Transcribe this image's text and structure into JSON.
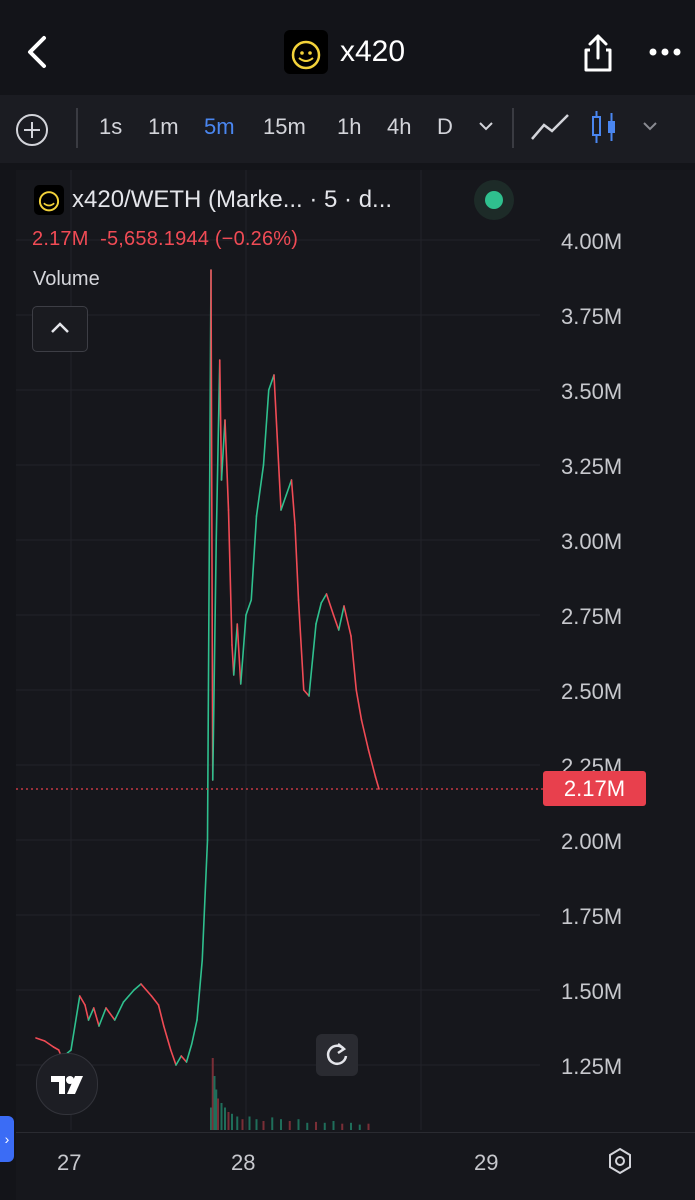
{
  "header": {
    "title": "x420",
    "logo_text": "x420",
    "back_icon": "chevron-left-icon",
    "share_icon": "share-icon",
    "more_icon": "more-dots-icon"
  },
  "toolbar": {
    "timeframes": [
      "1s",
      "1m",
      "5m",
      "15m",
      "1h",
      "4h",
      "D"
    ],
    "active_timeframe": "5m",
    "active_color": "#4a86f0"
  },
  "legend": {
    "pair": "x420/WETH (Marke... · 5 · d...",
    "last_price": "2.17M",
    "change": "-5,658.1944 (−0.26%)",
    "volume_label": "Volume",
    "down_color": "#f04b55",
    "up_color": "#2fc08e"
  },
  "chart_data": {
    "type": "line",
    "title": "x420/WETH (Marke... · 5 · d...",
    "series": [
      {
        "name": "x420/WETH",
        "x": [
          26.8,
          26.85,
          26.9,
          26.93,
          26.95,
          26.98,
          27.0,
          27.05,
          27.08,
          27.1,
          27.13,
          27.16,
          27.2,
          27.25,
          27.3,
          27.33,
          27.36,
          27.4,
          27.43,
          27.46,
          27.5,
          27.53,
          27.57,
          27.6,
          27.63,
          27.66,
          27.69,
          27.72,
          27.75,
          27.78,
          27.8,
          27.81,
          27.83,
          27.85,
          27.86,
          27.88,
          27.9,
          27.92,
          27.93,
          27.95,
          27.97,
          28.0,
          28.03,
          28.06,
          28.1,
          28.13,
          28.16,
          28.2,
          28.23,
          28.26,
          28.28,
          28.3,
          28.33,
          28.36,
          28.4,
          28.43,
          28.46,
          28.5,
          28.53,
          28.56,
          28.6,
          28.63,
          28.66,
          28.7,
          28.74,
          28.76
        ],
        "y": [
          1.34,
          1.33,
          1.31,
          1.3,
          1.27,
          1.29,
          1.3,
          1.48,
          1.45,
          1.4,
          1.44,
          1.38,
          1.44,
          1.4,
          1.46,
          1.48,
          1.5,
          1.52,
          1.5,
          1.48,
          1.45,
          1.38,
          1.3,
          1.25,
          1.28,
          1.26,
          1.32,
          1.4,
          1.6,
          2.0,
          3.9,
          2.2,
          3.0,
          3.6,
          3.2,
          3.4,
          3.1,
          2.65,
          2.55,
          2.72,
          2.52,
          2.75,
          2.8,
          3.08,
          3.25,
          3.5,
          3.55,
          3.1,
          3.15,
          3.2,
          3.05,
          2.8,
          2.5,
          2.48,
          2.72,
          2.79,
          2.82,
          2.75,
          2.7,
          2.78,
          2.68,
          2.5,
          2.4,
          2.3,
          2.21,
          2.17
        ]
      }
    ],
    "volume": {
      "x": [
        27.8,
        27.81,
        27.82,
        27.83,
        27.84,
        27.86,
        27.88,
        27.9,
        27.92,
        27.95,
        27.98,
        28.02,
        28.06,
        28.1,
        28.15,
        28.2,
        28.25,
        28.3,
        28.35,
        28.4,
        28.45,
        28.5,
        28.55,
        28.6,
        28.65,
        28.7
      ],
      "relative": [
        0.25,
        0.8,
        0.6,
        0.45,
        0.35,
        0.3,
        0.25,
        0.2,
        0.18,
        0.15,
        0.12,
        0.15,
        0.12,
        0.1,
        0.14,
        0.12,
        0.1,
        0.12,
        0.08,
        0.09,
        0.08,
        0.1,
        0.07,
        0.08,
        0.06,
        0.07
      ]
    },
    "xlim": [
      26.8,
      29.1
    ],
    "ylim": [
      1.1,
      4.1
    ],
    "x_ticks": [
      27,
      28,
      29
    ],
    "x_tick_labels": [
      "27",
      "28",
      "29"
    ],
    "y_ticks": [
      1.25,
      1.5,
      1.75,
      2.0,
      2.25,
      2.5,
      2.75,
      3.0,
      3.25,
      3.5,
      3.75,
      4.0
    ],
    "y_tick_labels": [
      "1.25M",
      "1.50M",
      "1.75M",
      "2.00M",
      "2.25M",
      "2.50M",
      "2.75M",
      "3.00M",
      "3.25M",
      "3.50M",
      "3.75M",
      "4.00M"
    ],
    "last_value": 2.17,
    "last_value_label": "2.17M",
    "grid": true,
    "xlabel": "",
    "ylabel": ""
  }
}
